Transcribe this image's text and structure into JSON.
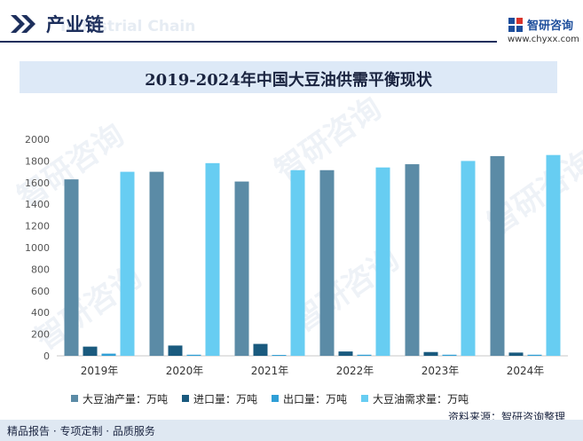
{
  "header": {
    "title": "产业链",
    "ghost_text": "Industrial Chain",
    "logo_name": "智研咨询",
    "logo_url": "www.chyxx.com"
  },
  "chart_data": {
    "type": "bar",
    "title": "2019-2024年中国大豆油供需平衡现状",
    "categories": [
      "2019年",
      "2020年",
      "2021年",
      "2022年",
      "2023年",
      "2024年"
    ],
    "series": [
      {
        "name": "大豆油产量：万吨",
        "color": "#5b8ba6",
        "values": [
          1630,
          1700,
          1610,
          1715,
          1770,
          1845
        ]
      },
      {
        "name": "进口量：万吨",
        "color": "#1a5a7e",
        "values": [
          85,
          95,
          110,
          40,
          35,
          30
        ]
      },
      {
        "name": "出口量：万吨",
        "color": "#2f9fd6",
        "values": [
          20,
          10,
          8,
          10,
          10,
          10
        ]
      },
      {
        "name": "大豆油需求量：万吨",
        "color": "#67cdf2",
        "values": [
          1700,
          1780,
          1715,
          1740,
          1800,
          1855
        ]
      }
    ],
    "ylim": [
      0,
      2000
    ],
    "yticks": [
      "2000",
      "1800",
      "1600",
      "1400",
      "1200",
      "1000",
      "800",
      "600",
      "400",
      "200",
      "0"
    ],
    "grid": false,
    "legend_position": "bottom"
  },
  "source": "资料来源：智研咨询整理",
  "footer": "精品报告 · 专项定制 · 品质服务"
}
